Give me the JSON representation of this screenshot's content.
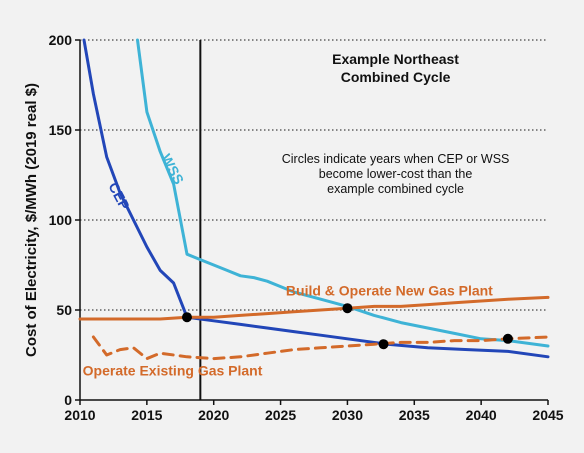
{
  "chart_data": {
    "type": "line",
    "title": "Example Northeast Combined Cycle",
    "title_lines": [
      "Example Northeast",
      "Combined Cycle"
    ],
    "ylabel": "Cost of Electricity, $/MWh (2019 real $)",
    "xlabel": "",
    "xlim": [
      2010,
      2045
    ],
    "ylim": [
      0,
      200
    ],
    "x_ticks": [
      2010,
      2015,
      2020,
      2025,
      2030,
      2035,
      2040,
      2045
    ],
    "y_ticks": [
      0,
      50,
      100,
      150,
      200
    ],
    "grid": "horizontal dotted",
    "annotation_lines": [
      "Circles indicate years when CEP or WSS",
      "become lower-cost than the",
      "example combined cycle"
    ],
    "vertical_marker_x": 2019,
    "series": [
      {
        "name": "WSS",
        "color": "#3eb3d6",
        "style": "solid",
        "points": [
          [
            2014.3,
            200
          ],
          [
            2015,
            160
          ],
          [
            2016,
            138
          ],
          [
            2017,
            120
          ],
          [
            2018,
            81
          ],
          [
            2019,
            78
          ],
          [
            2020,
            75
          ],
          [
            2021,
            72
          ],
          [
            2022,
            69
          ],
          [
            2023,
            68
          ],
          [
            2024,
            66
          ],
          [
            2025,
            63
          ],
          [
            2026,
            60
          ],
          [
            2028,
            56
          ],
          [
            2030,
            52
          ],
          [
            2032,
            47
          ],
          [
            2034,
            43
          ],
          [
            2036,
            40
          ],
          [
            2038,
            37
          ],
          [
            2040,
            34
          ],
          [
            2042,
            33
          ],
          [
            2045,
            30
          ]
        ]
      },
      {
        "name": "CEP",
        "color": "#2246b8",
        "style": "solid",
        "points": [
          [
            2010.3,
            200
          ],
          [
            2011,
            170
          ],
          [
            2012,
            135
          ],
          [
            2013,
            115
          ],
          [
            2014,
            100
          ],
          [
            2015,
            85
          ],
          [
            2016,
            72
          ],
          [
            2017,
            65
          ],
          [
            2018,
            46
          ],
          [
            2019,
            45
          ],
          [
            2020,
            44
          ],
          [
            2022,
            42
          ],
          [
            2024,
            40
          ],
          [
            2026,
            38
          ],
          [
            2028,
            36
          ],
          [
            2030,
            34
          ],
          [
            2033,
            31
          ],
          [
            2036,
            29
          ],
          [
            2039,
            28
          ],
          [
            2042,
            27
          ],
          [
            2045,
            24
          ]
        ]
      },
      {
        "name": "Build & Operate New Gas Plant",
        "color": "#d36a2a",
        "style": "solid",
        "points": [
          [
            2010,
            45
          ],
          [
            2013,
            45
          ],
          [
            2016,
            45
          ],
          [
            2018,
            46
          ],
          [
            2020,
            46
          ],
          [
            2022,
            47
          ],
          [
            2024,
            48
          ],
          [
            2026,
            49
          ],
          [
            2028,
            50
          ],
          [
            2030,
            51
          ],
          [
            2032,
            52
          ],
          [
            2034,
            52
          ],
          [
            2036,
            53
          ],
          [
            2038,
            54
          ],
          [
            2040,
            55
          ],
          [
            2042,
            56
          ],
          [
            2045,
            57
          ]
        ]
      },
      {
        "name": "Operate Existing Gas Plant",
        "color": "#d36a2a",
        "style": "dashed",
        "points": [
          [
            2011,
            35
          ],
          [
            2012,
            25
          ],
          [
            2013,
            28
          ],
          [
            2014,
            29
          ],
          [
            2015,
            23
          ],
          [
            2016,
            26
          ],
          [
            2017,
            25
          ],
          [
            2018,
            24
          ],
          [
            2020,
            23
          ],
          [
            2022,
            24
          ],
          [
            2024,
            26
          ],
          [
            2026,
            28
          ],
          [
            2028,
            29
          ],
          [
            2030,
            30
          ],
          [
            2032,
            31
          ],
          [
            2034,
            32
          ],
          [
            2036,
            32
          ],
          [
            2038,
            33
          ],
          [
            2040,
            33
          ],
          [
            2042,
            34
          ],
          [
            2045,
            35
          ]
        ]
      }
    ],
    "crossover_points": [
      [
        2018,
        46
      ],
      [
        2030,
        51
      ],
      [
        2032.7,
        31
      ],
      [
        2042,
        34
      ]
    ]
  }
}
